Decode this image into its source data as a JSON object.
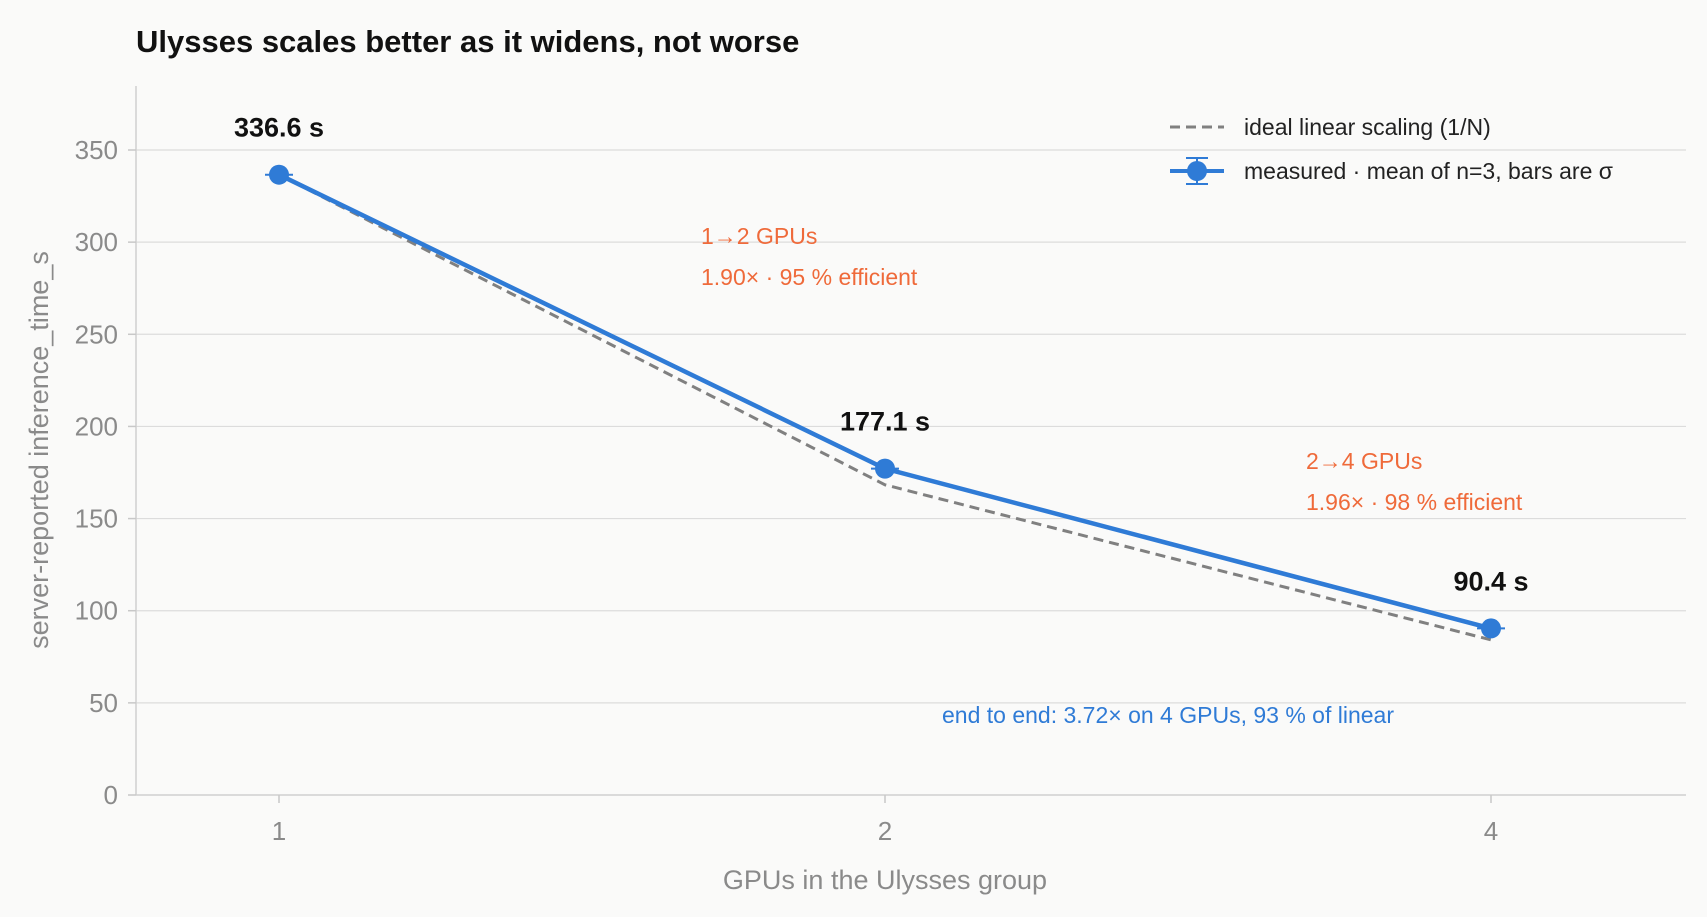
{
  "chart_data": {
    "type": "line",
    "title": "Ulysses scales better as it widens, not worse",
    "xlabel": "GPUs in the Ulysses group",
    "ylabel": "server-reported inference_time_s",
    "x_ticks": [
      "1",
      "2",
      "4"
    ],
    "y_ticks": [
      "0",
      "50",
      "100",
      "150",
      "200",
      "250",
      "300",
      "350"
    ],
    "ylim": [
      0,
      350
    ],
    "grid": "horizontal",
    "legend_position": "top-right",
    "series": [
      {
        "name": "ideal linear scaling (1/N)",
        "style": "dashed",
        "color": "#808080",
        "x": [
          1,
          2,
          4
        ],
        "values": [
          336.6,
          168.3,
          84.15
        ]
      },
      {
        "name": "measured · mean of n=3, bars are σ",
        "style": "solid-markers",
        "color": "#2f7bd6",
        "x": [
          1,
          2,
          4
        ],
        "values": [
          336.6,
          177.1,
          90.4
        ]
      }
    ],
    "point_labels": [
      "336.6 s",
      "177.1 s",
      "90.4 s"
    ],
    "annotations": {
      "a12_line1": "1→2 GPUs",
      "a12_line2": "1.90× · 95 % efficient",
      "a24_line1": "2→4 GPUs",
      "a24_line2": "1.96× · 98 % efficient",
      "end_to_end": "end to end: 3.72× on 4 GPUs, 93 % of linear"
    },
    "colors": {
      "measured": "#2f7bd6",
      "ideal": "#808080",
      "annotation": "#ef6a3a",
      "grid": "#dcdcdc",
      "axis_text": "#8a8a8a"
    }
  }
}
